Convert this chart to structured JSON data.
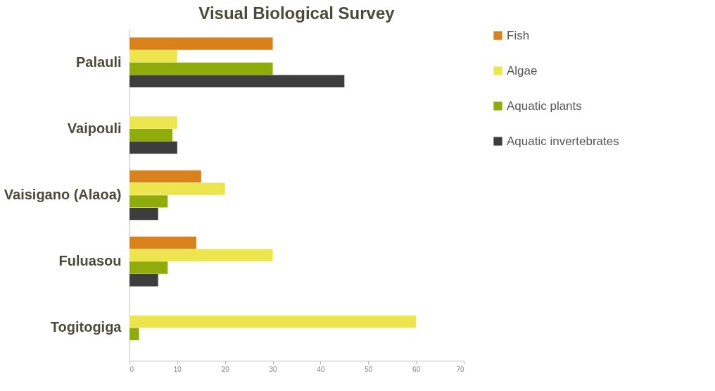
{
  "chart_data": {
    "type": "bar",
    "orientation": "horizontal",
    "title": "Visual Biological Survey",
    "categories": [
      "Palauli",
      "Vaipouli",
      "Vaisigano (Alaoa)",
      "Fuluasou",
      "Togitogiga"
    ],
    "series": [
      {
        "name": "Fish",
        "color": "#d9821c",
        "values": [
          30,
          0,
          15,
          14,
          0
        ]
      },
      {
        "name": "Algae",
        "color": "#ece54e",
        "values": [
          10,
          10,
          20,
          30,
          60
        ]
      },
      {
        "name": "Aquatic plants",
        "color": "#8fac0c",
        "values": [
          30,
          9,
          8,
          8,
          2
        ]
      },
      {
        "name": "Aquatic invertebrates",
        "color": "#3d3d3d",
        "values": [
          45,
          10,
          6,
          6,
          0
        ]
      }
    ],
    "xlim": [
      0,
      70
    ],
    "xticks": [
      0,
      10,
      20,
      30,
      40,
      50,
      60,
      70
    ],
    "grid": false,
    "legend": "right"
  }
}
